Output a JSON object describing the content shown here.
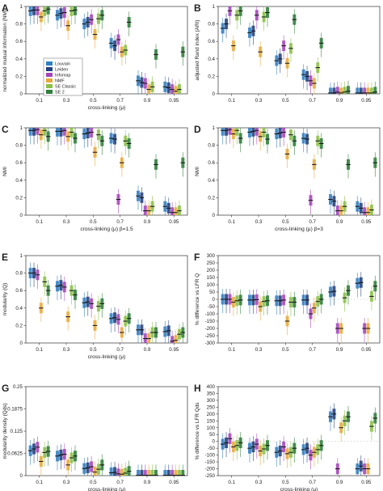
{
  "colors": {
    "Louvain": "#2f7fc1",
    "Leiden": "#23407f",
    "Infomap": "#a345b8",
    "NMF": "#e8a93a",
    "SE Classic": "#8cbf46",
    "SE 2": "#2e7d3a"
  },
  "legend": [
    "Louvain",
    "Leiden",
    "Infomap",
    "NMF",
    "SE Classic",
    "SE 2"
  ],
  "chart_data": [
    {
      "panel": "A",
      "type": "box",
      "ylabel": "normalized mutual information (NMI)",
      "xlabel": "cross-linking (μ)",
      "categories": [
        "0.1",
        "0.3",
        "0.5",
        "0.7",
        "0.9",
        "0.95"
      ],
      "ylim": [
        0,
        1
      ],
      "yticks": [
        0,
        0.2,
        0.4,
        0.6,
        0.8,
        1
      ],
      "ytick_labels": [
        "0",
        "0.2",
        "0.4",
        "0.6",
        "0.8",
        "1"
      ],
      "legend_position": "middle-left",
      "series": [
        {
          "name": "Louvain",
          "medians": [
            0.95,
            0.9,
            0.8,
            0.58,
            0.15,
            0.08
          ]
        },
        {
          "name": "Leiden",
          "medians": [
            0.96,
            0.92,
            0.82,
            0.55,
            0.13,
            0.07
          ]
        },
        {
          "name": "Infomap",
          "medians": [
            0.96,
            0.93,
            0.85,
            0.62,
            0.12,
            0.05
          ]
        },
        {
          "name": "NMF",
          "medians": [
            0.88,
            0.78,
            0.68,
            0.48,
            0.05,
            0.03
          ]
        },
        {
          "name": "SE Classic",
          "medians": [
            0.95,
            0.95,
            0.86,
            0.5,
            0.08,
            0.05
          ]
        },
        {
          "name": "SE 2",
          "medians": [
            0.97,
            0.96,
            0.9,
            0.82,
            0.45,
            0.48
          ]
        }
      ]
    },
    {
      "panel": "B",
      "type": "box",
      "ylabel": "adjusted Rand index (ARI)",
      "xlabel": "",
      "categories": [
        "0.1",
        "0.3",
        "0.5",
        "0.7",
        "0.9",
        "0.95"
      ],
      "ylim": [
        0,
        1
      ],
      "yticks": [
        0,
        0.2,
        0.4,
        0.6,
        0.8,
        1
      ],
      "ytick_labels": [
        "0",
        "0.2",
        "0.4",
        "0.6",
        "0.8",
        "1"
      ],
      "series": [
        {
          "name": "Louvain",
          "medians": [
            0.75,
            0.7,
            0.38,
            0.22,
            0.01,
            0.01
          ]
        },
        {
          "name": "Leiden",
          "medians": [
            0.8,
            0.72,
            0.4,
            0.2,
            0.01,
            0.01
          ]
        },
        {
          "name": "Infomap",
          "medians": [
            0.95,
            0.9,
            0.55,
            0.15,
            0.02,
            0.01
          ]
        },
        {
          "name": "NMF",
          "medians": [
            0.55,
            0.48,
            0.35,
            0.12,
            0.01,
            0.01
          ]
        },
        {
          "name": "SE Classic",
          "medians": [
            0.9,
            0.88,
            0.52,
            0.3,
            0.02,
            0.01
          ]
        },
        {
          "name": "SE 2",
          "medians": [
            0.95,
            0.93,
            0.85,
            0.58,
            0.03,
            0.02
          ]
        }
      ]
    },
    {
      "panel": "C",
      "type": "box",
      "ylabel": "NMI",
      "xlabel": "cross-linking (μ) β=1.5",
      "categories": [
        "0.1",
        "0.3",
        "0.5",
        "0.7",
        "0.9",
        "0.95"
      ],
      "ylim": [
        0,
        1
      ],
      "yticks": [
        0,
        0.2,
        0.4,
        0.6,
        0.8,
        1
      ],
      "ytick_labels": [
        "0",
        "0.2",
        "0.4",
        "0.6",
        "0.8",
        "1"
      ],
      "series": [
        {
          "name": "Louvain",
          "medians": [
            0.97,
            0.96,
            0.93,
            0.88,
            0.22,
            0.1
          ]
        },
        {
          "name": "Leiden",
          "medians": [
            0.97,
            0.96,
            0.94,
            0.87,
            0.2,
            0.08
          ]
        },
        {
          "name": "Infomap",
          "medians": [
            0.98,
            0.97,
            0.95,
            0.18,
            0.05,
            0.03
          ]
        },
        {
          "name": "NMF",
          "medians": [
            0.92,
            0.9,
            0.72,
            0.6,
            0.05,
            0.03
          ]
        },
        {
          "name": "SE Classic",
          "medians": [
            0.97,
            0.95,
            0.92,
            0.85,
            0.1,
            0.05
          ]
        },
        {
          "name": "SE 2",
          "medians": [
            0.9,
            0.88,
            0.85,
            0.82,
            0.58,
            0.6
          ]
        }
      ]
    },
    {
      "panel": "D",
      "type": "box",
      "ylabel": "NMI",
      "xlabel": "cross-linking (μ) β=3",
      "categories": [
        "0.1",
        "0.3",
        "0.5",
        "0.7",
        "0.9",
        "0.95"
      ],
      "ylim": [
        0,
        1
      ],
      "yticks": [
        0,
        0.2,
        0.4,
        0.6,
        0.8,
        1
      ],
      "ytick_labels": [
        "0",
        "0.2",
        "0.4",
        "0.6",
        "0.8",
        "1"
      ],
      "series": [
        {
          "name": "Louvain",
          "medians": [
            0.97,
            0.95,
            0.93,
            0.88,
            0.18,
            0.1
          ]
        },
        {
          "name": "Leiden",
          "medians": [
            0.97,
            0.96,
            0.94,
            0.87,
            0.16,
            0.08
          ]
        },
        {
          "name": "Infomap",
          "medians": [
            0.98,
            0.97,
            0.95,
            0.17,
            0.05,
            0.03
          ]
        },
        {
          "name": "NMF",
          "medians": [
            0.93,
            0.9,
            0.7,
            0.58,
            0.05,
            0.03
          ]
        },
        {
          "name": "SE Classic",
          "medians": [
            0.97,
            0.95,
            0.92,
            0.85,
            0.1,
            0.06
          ]
        },
        {
          "name": "SE 2",
          "medians": [
            0.88,
            0.87,
            0.85,
            0.82,
            0.58,
            0.6
          ]
        }
      ]
    },
    {
      "panel": "E",
      "type": "box",
      "ylabel": "modularity (Q)",
      "xlabel": "cross-linking (μ)",
      "categories": [
        "0.1",
        "0.3",
        "0.5",
        "0.7",
        "0.9",
        "0.95"
      ],
      "ylim": [
        0,
        1
      ],
      "yticks": [
        0,
        0.2,
        0.4,
        0.6,
        0.8,
        1
      ],
      "ytick_labels": [
        "0",
        "0.2",
        "0.4",
        "0.6",
        "0.8",
        "1"
      ],
      "series": [
        {
          "name": "Louvain",
          "medians": [
            0.8,
            0.65,
            0.46,
            0.28,
            0.15,
            0.13
          ]
        },
        {
          "name": "Leiden",
          "medians": [
            0.8,
            0.66,
            0.47,
            0.29,
            0.15,
            0.14
          ]
        },
        {
          "name": "Infomap",
          "medians": [
            0.78,
            0.64,
            0.45,
            0.27,
            0.05,
            0.02
          ]
        },
        {
          "name": "NMF",
          "medians": [
            0.4,
            0.3,
            0.2,
            0.12,
            0.05,
            0.03
          ]
        },
        {
          "name": "SE Classic",
          "medians": [
            0.7,
            0.6,
            0.42,
            0.25,
            0.12,
            0.1
          ]
        },
        {
          "name": "SE 2",
          "medians": [
            0.6,
            0.55,
            0.45,
            0.28,
            0.12,
            0.12
          ]
        }
      ]
    },
    {
      "panel": "F",
      "type": "box",
      "ylabel": "% difference vs LFR Q",
      "xlabel": "",
      "categories": [
        "0.1",
        "0.3",
        "0.5",
        "0.7",
        "0.9",
        "0.95"
      ],
      "ylim": [
        -300,
        300
      ],
      "yticks": [
        -300,
        -250,
        -200,
        -150,
        -100,
        -50,
        0,
        50,
        100,
        150,
        200,
        250,
        300
      ],
      "ytick_labels": [
        "-300",
        "-250",
        "-200",
        "-150",
        "-100",
        "-50",
        "0",
        "50",
        "100",
        "150",
        "200",
        "250",
        "300"
      ],
      "series": [
        {
          "name": "Louvain",
          "medians": [
            0,
            -5,
            -10,
            -5,
            50,
            110
          ]
        },
        {
          "name": "Leiden",
          "medians": [
            0,
            -5,
            -10,
            -5,
            55,
            115
          ]
        },
        {
          "name": "Infomap",
          "medians": [
            0,
            -2,
            -5,
            -100,
            -200,
            -200
          ]
        },
        {
          "name": "NMF",
          "medians": [
            -20,
            -50,
            -150,
            -60,
            -200,
            -200
          ]
        },
        {
          "name": "SE Classic",
          "medians": [
            -10,
            -15,
            -20,
            -15,
            10,
            20
          ]
        },
        {
          "name": "SE 2",
          "medians": [
            -5,
            -10,
            -20,
            0,
            60,
            90
          ]
        }
      ]
    },
    {
      "panel": "G",
      "type": "box",
      "ylabel": "modularity density (Qds)",
      "xlabel": "cross-linking (μ)",
      "categories": [
        "0.1",
        "0.3",
        "0.5",
        "0.7",
        "0.9",
        "0.95"
      ],
      "ylim": [
        0,
        0.25
      ],
      "yticks": [
        0,
        0.0625,
        0.125,
        0.1875,
        0.25
      ],
      "ytick_labels": [
        "0",
        "0.0625",
        "0.125",
        "0.1875",
        "0.25"
      ],
      "series": [
        {
          "name": "Louvain",
          "medians": [
            0.07,
            0.055,
            0.02,
            0.008,
            0.001,
            0.001
          ]
        },
        {
          "name": "Leiden",
          "medians": [
            0.075,
            0.058,
            0.022,
            0.009,
            0.001,
            0.001
          ]
        },
        {
          "name": "Infomap",
          "medians": [
            0.08,
            0.06,
            0.025,
            0.005,
            0.001,
            0.001
          ]
        },
        {
          "name": "NMF",
          "medians": [
            0.04,
            0.03,
            0.01,
            0.004,
            0.001,
            0.001
          ]
        },
        {
          "name": "SE Classic",
          "medians": [
            0.065,
            0.05,
            0.018,
            0.007,
            0.001,
            0.001
          ]
        },
        {
          "name": "SE 2",
          "medians": [
            0.068,
            0.055,
            0.03,
            0.012,
            0.001,
            0.001
          ]
        }
      ]
    },
    {
      "panel": "H",
      "type": "box",
      "ylabel": "% difference vs LFR Qds",
      "xlabel": "cross-linking (μ)",
      "categories": [
        "0.1",
        "0.3",
        "0.5",
        "0.7",
        "0.9",
        "0.95"
      ],
      "ylim": [
        -250,
        400
      ],
      "yticks": [
        -250,
        -200,
        -150,
        -100,
        -50,
        0,
        50,
        100,
        150,
        200,
        250,
        300,
        350,
        400
      ],
      "ytick_labels": [
        "-250",
        "-200",
        "-150",
        "-100",
        "-50",
        "0",
        "50",
        "100",
        "150",
        "200",
        "250",
        "300",
        "350",
        "400"
      ],
      "series": [
        {
          "name": "Louvain",
          "medians": [
            -20,
            -50,
            -80,
            -60,
            180,
            -200
          ]
        },
        {
          "name": "Leiden",
          "medians": [
            -10,
            -40,
            -70,
            -50,
            200,
            -180
          ]
        },
        {
          "name": "Infomap",
          "medians": [
            20,
            -20,
            -40,
            -100,
            -200,
            -200
          ]
        },
        {
          "name": "NMF",
          "medians": [
            -40,
            -70,
            -90,
            -80,
            100,
            -200
          ]
        },
        {
          "name": "SE Classic",
          "medians": [
            -30,
            -55,
            -80,
            -60,
            150,
            110
          ]
        },
        {
          "name": "SE 2",
          "medians": [
            -10,
            -30,
            -50,
            -30,
            180,
            170
          ]
        }
      ]
    }
  ]
}
